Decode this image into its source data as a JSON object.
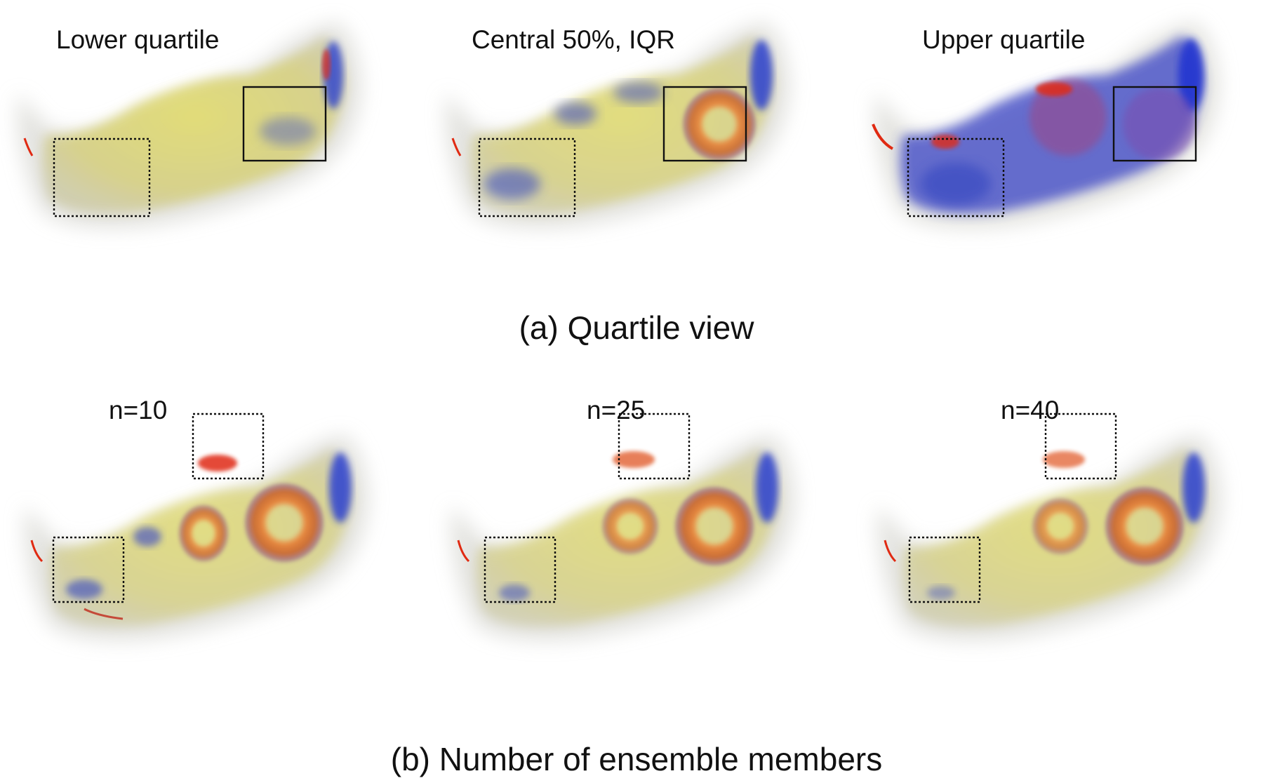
{
  "figure": {
    "row_a": {
      "caption": "(a) Quartile view",
      "panels": [
        {
          "label": "Lower quartile",
          "variant": "lower"
        },
        {
          "label": "Central 50%, IQR",
          "variant": "iqr"
        },
        {
          "label": "Upper quartile",
          "variant": "upper"
        }
      ]
    },
    "row_b": {
      "caption": "(b) Number of ensemble members",
      "panels": [
        {
          "label": "n=10",
          "variant": "n10"
        },
        {
          "label": "n=25",
          "variant": "n25"
        },
        {
          "label": "n=40",
          "variant": "n40"
        }
      ]
    }
  },
  "colors": {
    "body_yellow": "#d8d27a",
    "halo_grey": "#d9d9d4",
    "vortex_blue": "#2c3fd0",
    "vortex_orange": "#e0803a",
    "vortex_red": "#e02a12",
    "box_stroke": "#111111"
  }
}
